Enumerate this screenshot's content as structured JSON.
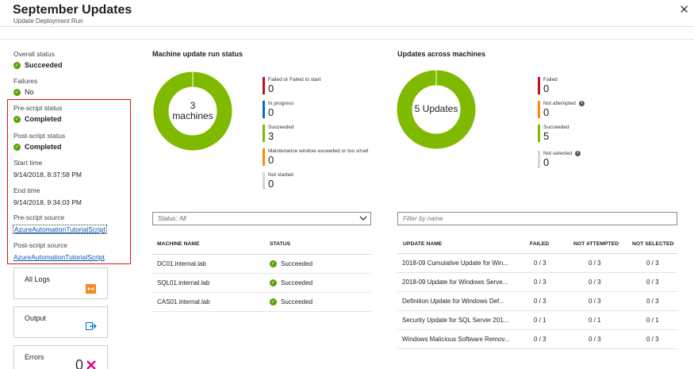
{
  "header": {
    "title": "September Updates",
    "subtitle": "Update Deployment Run",
    "close": "✕"
  },
  "left_panel": {
    "overall_status": {
      "label": "Overall status",
      "value": "Succeeded"
    },
    "failures": {
      "label": "Failures",
      "value": "No"
    },
    "pre_script_status": {
      "label": "Pre-script status",
      "value": "Completed"
    },
    "post_script_status": {
      "label": "Post-script status",
      "value": "Completed"
    },
    "start_time": {
      "label": "Start time",
      "value": "9/14/2018, 8:37:58 PM"
    },
    "end_time": {
      "label": "End time",
      "value": "9/14/2018, 9:34:03 PM"
    },
    "pre_script_source": {
      "label": "Pre-script source",
      "value": "AzureAutomationTutorialScript"
    },
    "post_script_source": {
      "label": "Post-script source",
      "value": "AzureAutomationTutorialScript"
    }
  },
  "tiles": {
    "all_logs": {
      "label": "All Logs",
      "icon": "logs-icon"
    },
    "output": {
      "label": "Output",
      "icon": "output-icon"
    },
    "errors": {
      "label": "Errors",
      "count": "0",
      "icon": "error-x-icon"
    }
  },
  "machine_status": {
    "title": "Machine update run status",
    "center_top": "3",
    "center_bottom": "machines",
    "legend": [
      {
        "label": "Failed or Failed to start",
        "value": "0",
        "color": "#c50f1f"
      },
      {
        "label": "In progress",
        "value": "0",
        "color": "#0072c6"
      },
      {
        "label": "Succeeded",
        "value": "3",
        "color": "#7fba00"
      },
      {
        "label": "Maintenance window exceeded or too small",
        "value": "0",
        "color": "#ff8c00"
      },
      {
        "label": "Not started",
        "value": "0",
        "color": "#d6d6d6"
      }
    ]
  },
  "updates_status": {
    "title": "Updates across machines",
    "center": "5 Updates",
    "legend": [
      {
        "label": "Failed",
        "value": "0",
        "color": "#c50f1f",
        "info": false
      },
      {
        "label": "Not attempted",
        "value": "0",
        "color": "#ff8c00",
        "info": true
      },
      {
        "label": "Succeeded",
        "value": "5",
        "color": "#7fba00",
        "info": false
      },
      {
        "label": "Not selected",
        "value": "0",
        "color": "#d6d6d6",
        "info": true
      }
    ]
  },
  "status_filter": {
    "value": "Status: All"
  },
  "name_filter": {
    "placeholder": "Filter by name"
  },
  "machines_table": {
    "headers": [
      "MACHINE NAME",
      "STATUS"
    ],
    "rows": [
      {
        "name": "DC01.internal.lab",
        "status": "Succeeded"
      },
      {
        "name": "SQL01.internal.lab",
        "status": "Succeeded"
      },
      {
        "name": "CAS01.internal.lab",
        "status": "Succeeded"
      }
    ]
  },
  "updates_table": {
    "headers": [
      "UPDATE NAME",
      "FAILED",
      "NOT ATTEMPTED",
      "NOT SELECTED"
    ],
    "rows": [
      {
        "name": "2018-09 Cumulative Update for Win...",
        "failed": "0 / 3",
        "not_attempted": "0 / 3",
        "not_selected": "0 / 3"
      },
      {
        "name": "2018-09 Update for Windows Serve...",
        "failed": "0 / 3",
        "not_attempted": "0 / 3",
        "not_selected": "0 / 3"
      },
      {
        "name": "Definition Update for Windows Def...",
        "failed": "0 / 3",
        "not_attempted": "0 / 3",
        "not_selected": "0 / 3"
      },
      {
        "name": "Security Update for SQL Server 201...",
        "failed": "0 / 1",
        "not_attempted": "0 / 1",
        "not_selected": "0 / 1"
      },
      {
        "name": "Windows Malicious Software Remov...",
        "failed": "0 / 3",
        "not_attempted": "0 / 3",
        "not_selected": "0 / 3"
      }
    ]
  },
  "colors": {
    "success": "#57a300",
    "donut": "#7fba00",
    "highlight_border": "#e3101a",
    "link": "#0058ad"
  }
}
